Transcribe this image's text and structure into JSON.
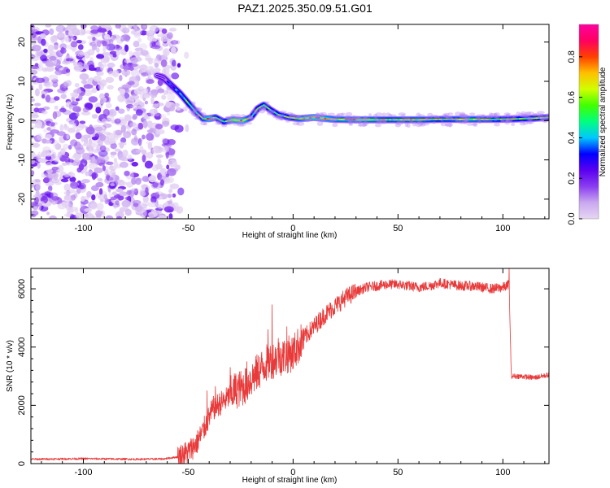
{
  "title": "PAZ1.2025.350.09.51.G01",
  "chart_data": [
    {
      "type": "heatmap",
      "name": "spectrogram",
      "xlabel": "Height of straight line (km)",
      "ylabel": "Frequency (Hz)",
      "xlim": [
        -125,
        122
      ],
      "ylim": [
        -25,
        24.5
      ],
      "xticks": [
        -100,
        -50,
        0,
        50,
        100
      ],
      "yticks": [
        -20,
        -10,
        0,
        10,
        20
      ],
      "xtick_labels": [
        "-100",
        "-50",
        "0",
        "50",
        "100"
      ],
      "ytick_labels": [
        "-20",
        "-10",
        "0",
        "10",
        "20"
      ],
      "colorbar": {
        "label": "Normalized spectral amplitude",
        "range": [
          0,
          0.96
        ],
        "ticks": [
          0.0,
          0.2,
          0.4,
          0.6,
          0.8
        ],
        "tick_labels": [
          "0.0",
          "0.2",
          "0.4",
          "0.6",
          "0.8"
        ],
        "colors": [
          "#e6d6f2",
          "#c9a8f0",
          "#8a3df0",
          "#5a00f0",
          "#0000ff",
          "#00c8ff",
          "#00ff80",
          "#40ff00",
          "#d0ff00",
          "#ffc000",
          "#ff4000",
          "#ff0060",
          "#ff00a0"
        ]
      },
      "noise_region_x": [
        -125,
        -56
      ],
      "ridge": [
        {
          "x": -65,
          "f": 11.5,
          "a": 0.15
        },
        {
          "x": -62,
          "f": 11.0,
          "a": 0.2
        },
        {
          "x": -58,
          "f": 9.0,
          "a": 0.35
        },
        {
          "x": -54,
          "f": 7.0,
          "a": 0.45
        },
        {
          "x": -50,
          "f": 4.5,
          "a": 0.5
        },
        {
          "x": -46,
          "f": 2.0,
          "a": 0.55
        },
        {
          "x": -43,
          "f": 0.5,
          "a": 0.65
        },
        {
          "x": -40,
          "f": 0.5,
          "a": 0.85
        },
        {
          "x": -37,
          "f": 0.8,
          "a": 0.6
        },
        {
          "x": -33,
          "f": -0.3,
          "a": 0.55
        },
        {
          "x": -29,
          "f": 0.2,
          "a": 0.8
        },
        {
          "x": -24,
          "f": 0.0,
          "a": 0.85
        },
        {
          "x": -20,
          "f": 0.8,
          "a": 0.55
        },
        {
          "x": -17,
          "f": 3.0,
          "a": 0.5
        },
        {
          "x": -14,
          "f": 4.0,
          "a": 0.6
        },
        {
          "x": -11,
          "f": 2.8,
          "a": 0.5
        },
        {
          "x": -7,
          "f": 1.5,
          "a": 0.55
        },
        {
          "x": -2,
          "f": 0.8,
          "a": 0.6
        },
        {
          "x": 3,
          "f": 0.5,
          "a": 0.7
        },
        {
          "x": 10,
          "f": 0.8,
          "a": 0.85
        },
        {
          "x": 20,
          "f": 0.3,
          "a": 0.7
        },
        {
          "x": 30,
          "f": 0.2,
          "a": 0.75
        },
        {
          "x": 45,
          "f": 0.2,
          "a": 0.65
        },
        {
          "x": 60,
          "f": 0.2,
          "a": 0.7
        },
        {
          "x": 70,
          "f": 0.3,
          "a": 0.6
        },
        {
          "x": 85,
          "f": 0.3,
          "a": 0.7
        },
        {
          "x": 95,
          "f": 0.3,
          "a": 0.6
        },
        {
          "x": 105,
          "f": 0.4,
          "a": 0.55
        },
        {
          "x": 115,
          "f": 0.6,
          "a": 0.6
        },
        {
          "x": 122,
          "f": 0.8,
          "a": 0.55
        }
      ]
    },
    {
      "type": "line",
      "name": "snr",
      "xlabel": "Height of straight line (km)",
      "ylabel": "SNR (10 * v/v)",
      "xlim": [
        -125,
        122
      ],
      "ylim": [
        0,
        6700
      ],
      "xticks": [
        -100,
        -50,
        0,
        50,
        100
      ],
      "yticks": [
        0,
        2000,
        4000,
        6000
      ],
      "xtick_labels": [
        "-100",
        "-50",
        "0",
        "50",
        "100"
      ],
      "ytick_labels": [
        "0",
        "2000",
        "4000",
        "6000"
      ],
      "line_color": "#e83a3a",
      "series": [
        {
          "name": "SNR",
          "x": [
            -125,
            -100,
            -75,
            -62,
            -55,
            -50,
            -46,
            -43,
            -40,
            -38,
            -36,
            -32,
            -28,
            -24,
            -20,
            -16,
            -12,
            -8,
            -4,
            0,
            5,
            10,
            15,
            20,
            25,
            30,
            35,
            40,
            45,
            50,
            55,
            60,
            65,
            70,
            75,
            80,
            85,
            90,
            95,
            100,
            102,
            103,
            104,
            108,
            115,
            122
          ],
          "y": [
            150,
            170,
            150,
            160,
            230,
            400,
            700,
            1100,
            1600,
            1900,
            2000,
            2200,
            2500,
            2600,
            2900,
            3200,
            3500,
            3600,
            3700,
            3800,
            4300,
            4700,
            5100,
            5400,
            5700,
            5900,
            6050,
            6100,
            6150,
            6150,
            6100,
            6050,
            6100,
            6200,
            6150,
            6100,
            6100,
            6050,
            6000,
            6050,
            6100,
            6200,
            3000,
            3000,
            2950,
            3050
          ]
        }
      ],
      "spikes": [
        {
          "x": -41,
          "y": 2500
        },
        {
          "x": -37,
          "y": 2650
        },
        {
          "x": -30,
          "y": 3300
        },
        {
          "x": -22,
          "y": 3500
        },
        {
          "x": -12,
          "y": 4600
        },
        {
          "x": -10,
          "y": 5450
        },
        {
          "x": -7,
          "y": 4300
        },
        {
          "x": -3,
          "y": 4700
        },
        {
          "x": 103,
          "y": 6800
        }
      ]
    }
  ]
}
